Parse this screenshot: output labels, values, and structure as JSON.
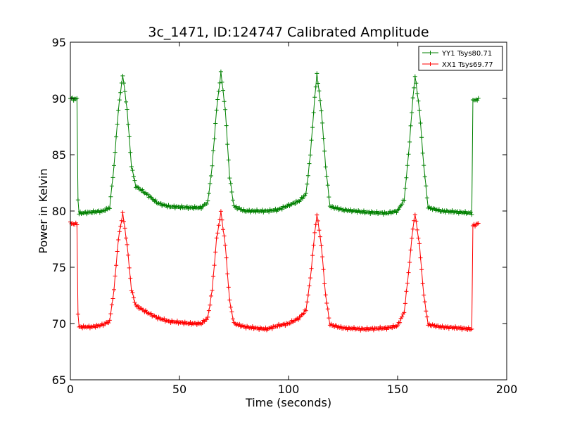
{
  "chart_data": {
    "type": "line",
    "title": "3c_1471, ID:124747 Calibrated Amplitude",
    "xlabel": "Time (seconds)",
    "ylabel": "Power in Kelvin",
    "xlim": [
      0,
      200
    ],
    "ylim": [
      65,
      95
    ],
    "xticks": [
      "0",
      "50",
      "100",
      "150",
      "200"
    ],
    "yticks": [
      "65",
      "70",
      "75",
      "80",
      "85",
      "90",
      "95"
    ],
    "grid": false,
    "legend_position": "top-right",
    "series": [
      {
        "name": "YY1 Tsys80.71",
        "color": "#008000",
        "marker": "plus",
        "baseline": 80.0,
        "peak_times": [
          24,
          69,
          113,
          158
        ],
        "peak_values": [
          92.1,
          92.3,
          92.2,
          92.0
        ],
        "points": [
          [
            0,
            90.0
          ],
          [
            1,
            90.0
          ],
          [
            2,
            89.9
          ],
          [
            3,
            90.0
          ],
          [
            3.5,
            81.0
          ],
          [
            4,
            79.8
          ],
          [
            10,
            79.9
          ],
          [
            15,
            80.0
          ],
          [
            18,
            80.3
          ],
          [
            20,
            84.0
          ],
          [
            22,
            89.0
          ],
          [
            24,
            92.1
          ],
          [
            26,
            89.0
          ],
          [
            28,
            84.0
          ],
          [
            30,
            82.2
          ],
          [
            35,
            81.5
          ],
          [
            40,
            80.7
          ],
          [
            45,
            80.4
          ],
          [
            55,
            80.3
          ],
          [
            60,
            80.3
          ],
          [
            63,
            80.8
          ],
          [
            65,
            84.0
          ],
          [
            67,
            89.0
          ],
          [
            69,
            92.3
          ],
          [
            71,
            89.0
          ],
          [
            73,
            83.0
          ],
          [
            75,
            80.4
          ],
          [
            80,
            80.0
          ],
          [
            90,
            80.0
          ],
          [
            95,
            80.1
          ],
          [
            100,
            80.5
          ],
          [
            105,
            80.9
          ],
          [
            108,
            81.5
          ],
          [
            110,
            85.0
          ],
          [
            112,
            90.0
          ],
          [
            113,
            92.2
          ],
          [
            115,
            89.0
          ],
          [
            117,
            84.0
          ],
          [
            119,
            80.4
          ],
          [
            125,
            80.1
          ],
          [
            135,
            79.9
          ],
          [
            145,
            79.8
          ],
          [
            150,
            80.0
          ],
          [
            153,
            81.0
          ],
          [
            155,
            85.0
          ],
          [
            157,
            90.0
          ],
          [
            158,
            92.0
          ],
          [
            160,
            89.0
          ],
          [
            162,
            84.0
          ],
          [
            164,
            80.3
          ],
          [
            170,
            80.0
          ],
          [
            178,
            79.9
          ],
          [
            184,
            79.8
          ],
          [
            184.5,
            89.8
          ],
          [
            186,
            89.9
          ],
          [
            187,
            89.9
          ]
        ]
      },
      {
        "name": "XX1 Tsys69.77",
        "color": "#ff0000",
        "marker": "plus",
        "baseline": 69.7,
        "peak_times": [
          24,
          69,
          113,
          158
        ],
        "peak_values": [
          79.8,
          79.9,
          79.7,
          79.7
        ],
        "points": [
          [
            0,
            78.9
          ],
          [
            1,
            78.9
          ],
          [
            2,
            78.8
          ],
          [
            3,
            78.9
          ],
          [
            3.5,
            70.8
          ],
          [
            4,
            69.7
          ],
          [
            10,
            69.7
          ],
          [
            15,
            69.9
          ],
          [
            18,
            70.2
          ],
          [
            20,
            73.0
          ],
          [
            22,
            77.5
          ],
          [
            24,
            79.8
          ],
          [
            26,
            77.0
          ],
          [
            28,
            73.0
          ],
          [
            30,
            71.6
          ],
          [
            35,
            71.0
          ],
          [
            40,
            70.5
          ],
          [
            45,
            70.2
          ],
          [
            55,
            70.0
          ],
          [
            60,
            70.0
          ],
          [
            63,
            70.5
          ],
          [
            65,
            73.0
          ],
          [
            67,
            77.5
          ],
          [
            69,
            79.9
          ],
          [
            71,
            77.0
          ],
          [
            73,
            72.0
          ],
          [
            75,
            70.0
          ],
          [
            80,
            69.7
          ],
          [
            90,
            69.5
          ],
          [
            95,
            69.8
          ],
          [
            100,
            70.0
          ],
          [
            105,
            70.5
          ],
          [
            108,
            71.2
          ],
          [
            110,
            74.0
          ],
          [
            112,
            78.0
          ],
          [
            113,
            79.7
          ],
          [
            115,
            77.0
          ],
          [
            117,
            72.5
          ],
          [
            119,
            69.9
          ],
          [
            125,
            69.6
          ],
          [
            135,
            69.5
          ],
          [
            145,
            69.6
          ],
          [
            150,
            69.8
          ],
          [
            153,
            71.0
          ],
          [
            155,
            74.5
          ],
          [
            157,
            78.5
          ],
          [
            158,
            79.7
          ],
          [
            160,
            77.0
          ],
          [
            162,
            72.5
          ],
          [
            164,
            69.9
          ],
          [
            170,
            69.7
          ],
          [
            178,
            69.6
          ],
          [
            184,
            69.5
          ],
          [
            184.5,
            78.7
          ],
          [
            186,
            78.8
          ],
          [
            187,
            78.9
          ]
        ]
      }
    ]
  }
}
